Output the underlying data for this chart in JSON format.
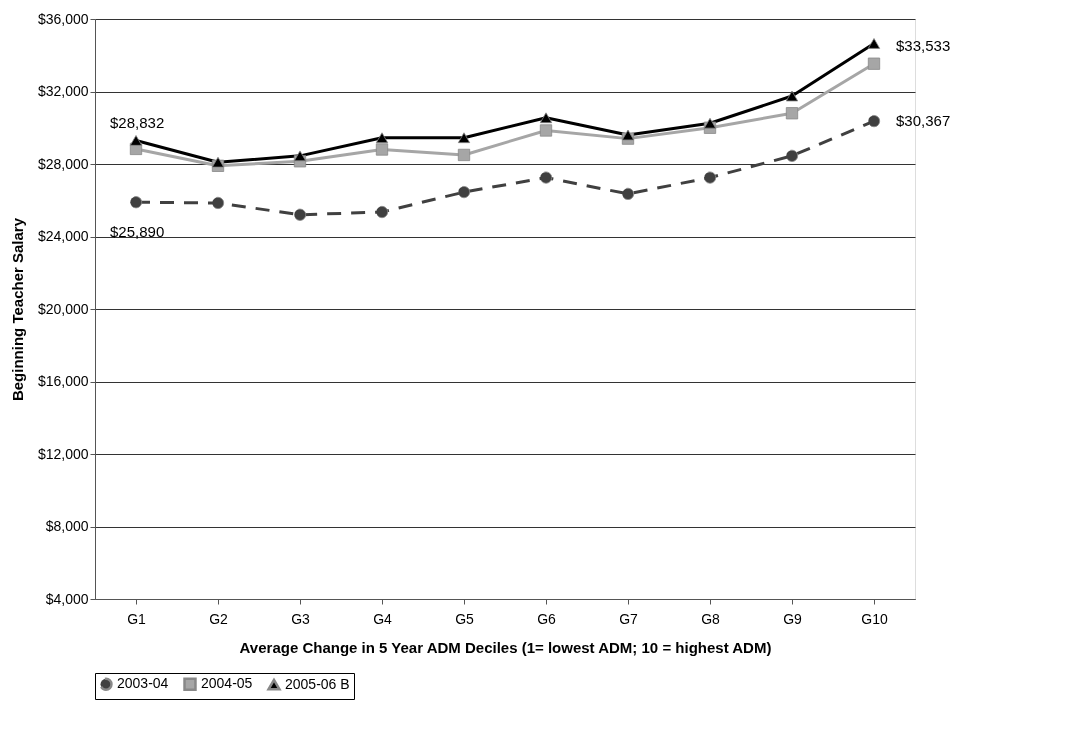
{
  "chart_data": {
    "type": "line",
    "xlabel": "Average Change in 5 Year ADM Deciles (1= lowest ADM; 10 = highest ADM)",
    "ylabel": "Beginning Teacher Salary",
    "categories": [
      "G1",
      "G2",
      "G3",
      "G4",
      "G5",
      "G6",
      "G7",
      "G8",
      "G9",
      "G10"
    ],
    "series": [
      {
        "name": "2003-04",
        "color": "#404040",
        "marker": "circle",
        "line_style": "dashed",
        "values": [
          25890,
          25850,
          25200,
          25350,
          26450,
          27250,
          26350,
          27250,
          28450,
          30367
        ],
        "value_labels": [
          "$25,890",
          null,
          null,
          null,
          null,
          null,
          null,
          null,
          null,
          "$30,367"
        ]
      },
      {
        "name": "2004-05",
        "color": "#a6a6a6",
        "marker": "square",
        "line_style": "solid",
        "values": [
          28832,
          27900,
          28150,
          28800,
          28500,
          29850,
          29400,
          30000,
          30800,
          33533
        ],
        "value_labels": [
          "$28,832",
          null,
          null,
          null,
          null,
          null,
          null,
          null,
          null,
          "$33,533"
        ]
      },
      {
        "name": "2005-06 B",
        "color": "#000000",
        "marker": "triangle",
        "line_style": "solid",
        "values": [
          29300,
          28100,
          28450,
          29450,
          29450,
          30550,
          29600,
          30250,
          31750,
          34650
        ]
      }
    ],
    "ylim": [
      4000,
      36000
    ],
    "yticks": [
      {
        "value": 4000,
        "label": "$4,000"
      },
      {
        "value": 8000,
        "label": "$8,000"
      },
      {
        "value": 12000,
        "label": "$12,000"
      },
      {
        "value": 16000,
        "label": "$16,000"
      },
      {
        "value": 20000,
        "label": "$20,000"
      },
      {
        "value": 24000,
        "label": "$24,000"
      },
      {
        "value": 28000,
        "label": "$28,000"
      },
      {
        "value": 32000,
        "label": "$32,000"
      },
      {
        "value": 36000,
        "label": "$36,000"
      }
    ],
    "grid": "y",
    "legend": "bottom"
  }
}
